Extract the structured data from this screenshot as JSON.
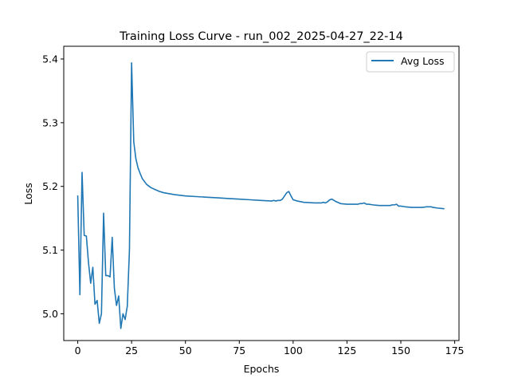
{
  "chart_data": {
    "type": "line",
    "title": "Training Loss Curve - run_002_2025-04-27_22-14",
    "xlabel": "Epochs",
    "ylabel": "Loss",
    "xlim": [
      -6.5,
      177
    ],
    "ylim": [
      4.958,
      5.42
    ],
    "x_ticks": [
      0,
      25,
      50,
      75,
      100,
      125,
      150,
      175
    ],
    "x_tick_labels": [
      "0",
      "25",
      "50",
      "75",
      "100",
      "125",
      "150",
      "175"
    ],
    "y_ticks": [
      5.0,
      5.1,
      5.2,
      5.3,
      5.4
    ],
    "y_tick_labels": [
      "5.0",
      "5.1",
      "5.2",
      "5.3",
      "5.4"
    ],
    "grid": false,
    "legend_position": "top-right",
    "series": [
      {
        "name": "Avg Loss",
        "color": "#1f77b4",
        "x": [
          0,
          1,
          2,
          3,
          4,
          5,
          6,
          7,
          8,
          9,
          10,
          11,
          12,
          13,
          14,
          15,
          16,
          17,
          18,
          19,
          20,
          21,
          22,
          23,
          24,
          25,
          26,
          27,
          28,
          29,
          30,
          32,
          34,
          36,
          38,
          40,
          45,
          50,
          55,
          60,
          65,
          70,
          75,
          80,
          85,
          90,
          91,
          92,
          93,
          94,
          95,
          96,
          97,
          98,
          99,
          100,
          102,
          105,
          110,
          112,
          113,
          114,
          115,
          116,
          117,
          118,
          119,
          120,
          122,
          125,
          128,
          130,
          131,
          132,
          133,
          134,
          135,
          137,
          140,
          142,
          145,
          146,
          147,
          148,
          149,
          150,
          152,
          155,
          158,
          160,
          162,
          164,
          165,
          167,
          170
        ],
        "values": [
          5.185,
          5.03,
          5.222,
          5.123,
          5.122,
          5.08,
          5.048,
          5.073,
          5.015,
          5.021,
          4.985,
          5.0,
          5.158,
          5.06,
          5.06,
          5.058,
          5.12,
          5.04,
          5.013,
          5.028,
          4.977,
          5.0,
          4.991,
          5.012,
          5.1,
          5.394,
          5.27,
          5.243,
          5.229,
          5.22,
          5.212,
          5.203,
          5.198,
          5.195,
          5.192,
          5.19,
          5.187,
          5.185,
          5.184,
          5.183,
          5.182,
          5.181,
          5.18,
          5.179,
          5.178,
          5.177,
          5.178,
          5.177,
          5.178,
          5.178,
          5.18,
          5.185,
          5.19,
          5.192,
          5.185,
          5.179,
          5.177,
          5.175,
          5.174,
          5.174,
          5.174,
          5.175,
          5.174,
          5.176,
          5.179,
          5.18,
          5.178,
          5.176,
          5.173,
          5.172,
          5.172,
          5.172,
          5.173,
          5.173,
          5.174,
          5.172,
          5.172,
          5.171,
          5.17,
          5.17,
          5.17,
          5.171,
          5.171,
          5.172,
          5.169,
          5.169,
          5.168,
          5.167,
          5.167,
          5.167,
          5.168,
          5.168,
          5.167,
          5.166,
          5.165
        ]
      }
    ]
  }
}
